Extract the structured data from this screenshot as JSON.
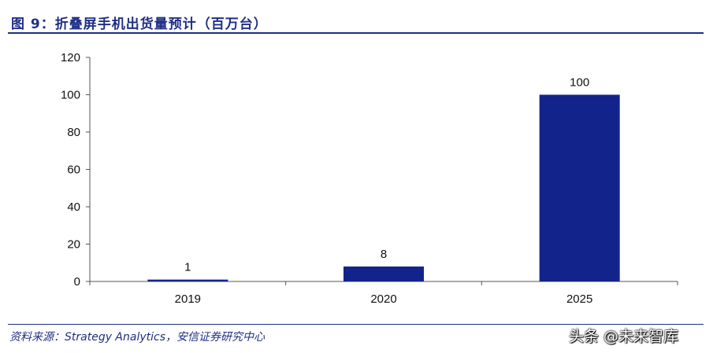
{
  "figure_title": "图 9：折叠屏手机出货量预计（百万台）",
  "source_note": "资料来源：Strategy Analytics，安信证券研究中心",
  "watermark": "头条 @未来智库",
  "colors": {
    "bar": "#13238c",
    "title": "#1f2f86",
    "axis": "#555555"
  },
  "chart_data": {
    "type": "bar",
    "title": "折叠屏手机出货量预计（百万台）",
    "categories": [
      "2019",
      "2020",
      "2025"
    ],
    "values": [
      1,
      8,
      100
    ],
    "data_labels": [
      "1",
      "8",
      "100"
    ],
    "ylim": [
      0,
      120
    ],
    "yticks": [
      0,
      20,
      40,
      60,
      80,
      100,
      120
    ],
    "xlabel": "",
    "ylabel": "",
    "grid": false,
    "legend": "none"
  }
}
